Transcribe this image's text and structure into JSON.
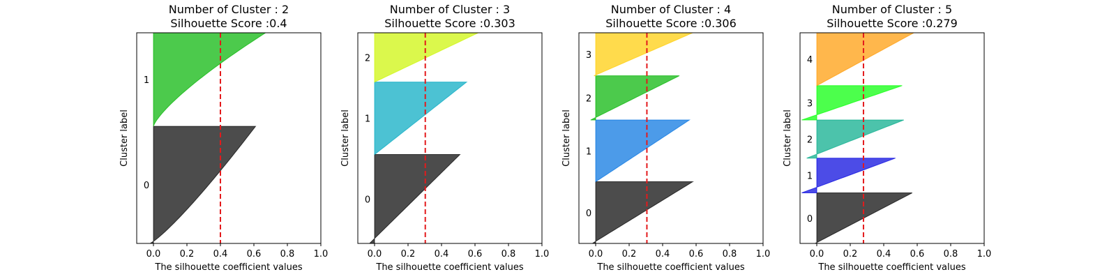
{
  "chart_data": [
    {
      "type": "area",
      "title_line1": "Number of Cluster : 2",
      "title_line2": "Silhouette Score :0.4",
      "xlabel": "The silhouette coefficient values",
      "ylabel": "Cluster label",
      "xticks": [
        "0.0",
        "0.2",
        "0.4",
        "0.6",
        "0.8",
        "1.0"
      ],
      "xlim": [
        -0.1,
        1.0
      ],
      "silhouette_score": 0.4,
      "clusters": [
        {
          "label": "0",
          "color": "#000000",
          "band": [
            0.0,
            0.556
          ],
          "max": 0.61,
          "min": -0.02,
          "shape": 0.85
        },
        {
          "label": "1",
          "color": "#00b300",
          "band": [
            0.556,
            1.0
          ],
          "max": 0.67,
          "min": 0.0,
          "shape": 1.3
        }
      ]
    },
    {
      "type": "area",
      "title_line1": "Number of Cluster : 3",
      "title_line2": "Silhouette Score :0.303",
      "xlabel": "The silhouette coefficient values",
      "ylabel": "Cluster label",
      "xticks": [
        "0.0",
        "0.2",
        "0.4",
        "0.6",
        "0.8",
        "1.0"
      ],
      "xlim": [
        -0.1,
        1.0
      ],
      "silhouette_score": 0.303,
      "clusters": [
        {
          "label": "0",
          "color": "#000000",
          "band": [
            0.0,
            0.422
          ],
          "max": 0.51,
          "min": -0.03,
          "shape": 1.0
        },
        {
          "label": "1",
          "color": "#00a8c0",
          "band": [
            0.422,
            0.766
          ],
          "max": 0.55,
          "min": 0.0,
          "shape": 1.0
        },
        {
          "label": "2",
          "color": "#ccf500",
          "band": [
            0.766,
            1.0
          ],
          "max": 0.62,
          "min": 0.0,
          "shape": 1.0
        }
      ]
    },
    {
      "type": "area",
      "title_line1": "Number of Cluster : 4",
      "title_line2": "Silhouette Score :0.306",
      "xlabel": "The silhouette coefficient values",
      "ylabel": "Cluster label",
      "xticks": [
        "0.0",
        "0.2",
        "0.4",
        "0.6",
        "0.8",
        "1.0"
      ],
      "xlim": [
        -0.1,
        1.0
      ],
      "silhouette_score": 0.306,
      "clusters": [
        {
          "label": "0",
          "color": "#000000",
          "band": [
            0.0,
            0.293
          ],
          "max": 0.58,
          "min": -0.02,
          "shape": 1.0
        },
        {
          "label": "1",
          "color": "#0070e0",
          "band": [
            0.293,
            0.586
          ],
          "max": 0.56,
          "min": 0.0,
          "shape": 1.0
        },
        {
          "label": "2",
          "color": "#00b300",
          "band": [
            0.586,
            0.796
          ],
          "max": 0.5,
          "min": -0.03,
          "shape": 1.0
        },
        {
          "label": "3",
          "color": "#ffcc00",
          "band": [
            0.796,
            1.0
          ],
          "max": 0.58,
          "min": -0.01,
          "shape": 1.0
        }
      ]
    },
    {
      "type": "area",
      "title_line1": "Number of Cluster : 5",
      "title_line2": "Silhouette Score :0.279",
      "xlabel": "The silhouette coefficient values",
      "ylabel": "Cluster label",
      "xticks": [
        "0.0",
        "0.2",
        "0.4",
        "0.6",
        "0.8",
        "1.0"
      ],
      "xlim": [
        -0.1,
        1.0
      ],
      "silhouette_score": 0.279,
      "clusters": [
        {
          "label": "0",
          "color": "#000000",
          "band": [
            0.0,
            0.24
          ],
          "max": 0.57,
          "min": -0.01,
          "shape": 1.0
        },
        {
          "label": "1",
          "color": "#0000dd",
          "band": [
            0.24,
            0.405
          ],
          "max": 0.47,
          "min": -0.09,
          "shape": 1.0
        },
        {
          "label": "2",
          "color": "#00aa88",
          "band": [
            0.405,
            0.586
          ],
          "max": 0.52,
          "min": -0.06,
          "shape": 1.0
        },
        {
          "label": "3",
          "color": "#00ff00",
          "band": [
            0.586,
            0.749
          ],
          "max": 0.51,
          "min": -0.09,
          "shape": 1.0
        },
        {
          "label": "4",
          "color": "#ff9900",
          "band": [
            0.749,
            1.0
          ],
          "max": 0.58,
          "min": 0.0,
          "shape": 1.0
        }
      ]
    }
  ]
}
